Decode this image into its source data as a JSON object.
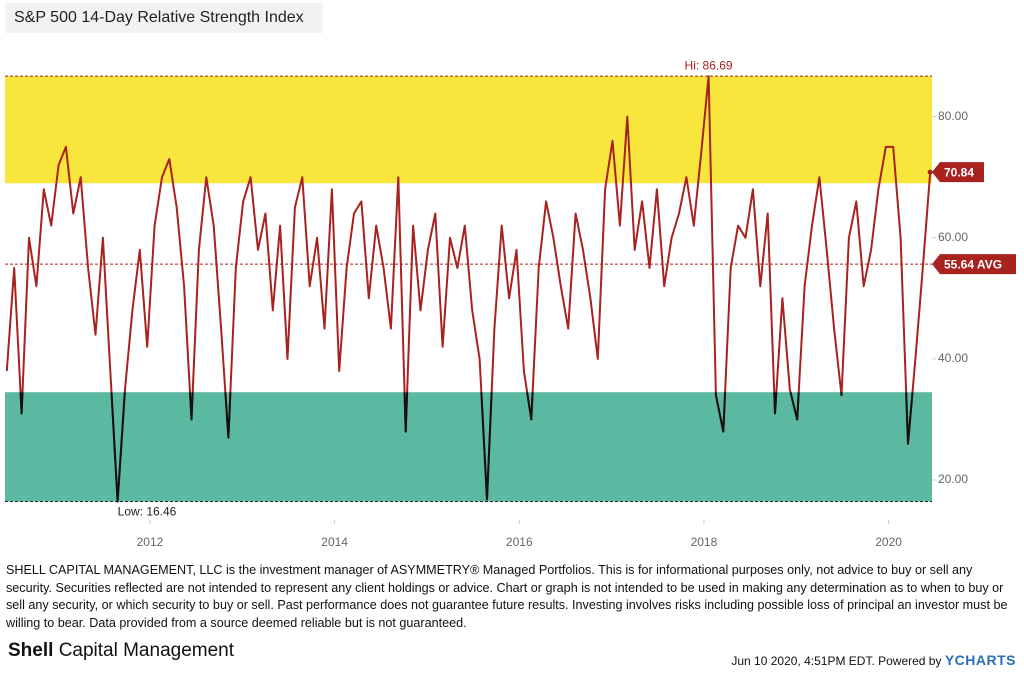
{
  "chart_data": {
    "type": "line",
    "title": "S&P 500 14-Day Relative Strength Index",
    "x": [
      2010.45,
      2010.53,
      2010.61,
      2010.69,
      2010.77,
      2010.85,
      2010.93,
      2011.01,
      2011.09,
      2011.17,
      2011.25,
      2011.33,
      2011.41,
      2011.49,
      2011.57,
      2011.65,
      2011.73,
      2011.81,
      2011.89,
      2011.97,
      2012.05,
      2012.13,
      2012.21,
      2012.29,
      2012.37,
      2012.45,
      2012.53,
      2012.61,
      2012.69,
      2012.77,
      2012.85,
      2012.93,
      2013.01,
      2013.09,
      2013.17,
      2013.25,
      2013.33,
      2013.41,
      2013.49,
      2013.57,
      2013.65,
      2013.73,
      2013.81,
      2013.89,
      2013.97,
      2014.05,
      2014.13,
      2014.21,
      2014.29,
      2014.37,
      2014.45,
      2014.53,
      2014.61,
      2014.69,
      2014.77,
      2014.85,
      2014.93,
      2015.01,
      2015.09,
      2015.17,
      2015.25,
      2015.33,
      2015.41,
      2015.49,
      2015.57,
      2015.65,
      2015.73,
      2015.81,
      2015.89,
      2015.97,
      2016.05,
      2016.13,
      2016.21,
      2016.29,
      2016.37,
      2016.45,
      2016.53,
      2016.61,
      2016.69,
      2016.77,
      2016.85,
      2016.93,
      2017.01,
      2017.09,
      2017.17,
      2017.25,
      2017.33,
      2017.41,
      2017.49,
      2017.57,
      2017.65,
      2017.73,
      2017.81,
      2017.89,
      2017.97,
      2018.05,
      2018.13,
      2018.21,
      2018.29,
      2018.37,
      2018.45,
      2018.53,
      2018.61,
      2018.69,
      2018.77,
      2018.85,
      2018.93,
      2019.01,
      2019.09,
      2019.17,
      2019.25,
      2019.33,
      2019.41,
      2019.49,
      2019.57,
      2019.65,
      2019.73,
      2019.81,
      2019.89,
      2019.97,
      2020.05,
      2020.13,
      2020.21,
      2020.29,
      2020.37,
      2020.45
    ],
    "series": [
      {
        "name": "S&P 500 14-Day Relative Strength Index",
        "color": "#a8231f",
        "low_color": "#111111",
        "values": [
          38,
          55,
          31,
          60,
          52,
          68,
          62,
          72,
          75,
          64,
          70,
          55,
          44,
          60,
          38,
          16.46,
          35,
          48,
          58,
          42,
          62,
          70,
          73,
          65,
          52,
          30,
          58,
          70,
          62,
          45,
          27,
          55,
          66,
          70,
          58,
          64,
          48,
          62,
          40,
          65,
          70,
          52,
          60,
          45,
          68,
          38,
          55,
          64,
          66,
          50,
          62,
          55,
          45,
          70,
          28,
          62,
          48,
          58,
          64,
          42,
          60,
          55,
          62,
          48,
          40,
          16.8,
          45,
          62,
          50,
          58,
          38,
          30,
          55,
          66,
          60,
          52,
          45,
          64,
          58,
          50,
          40,
          68,
          76,
          62,
          80,
          58,
          66,
          55,
          68,
          52,
          60,
          64,
          70,
          62,
          74,
          86.69,
          34,
          28,
          55,
          62,
          60,
          68,
          52,
          64,
          31,
          50,
          35,
          30,
          52,
          62,
          70,
          58,
          45,
          34,
          60,
          66,
          52,
          58,
          68,
          75,
          75,
          60,
          26,
          40,
          55,
          70.84
        ]
      }
    ],
    "xlim": [
      2010.43,
      2020.47
    ],
    "ylim": [
      13.4,
      91
    ],
    "xticks": [
      2012,
      2014,
      2016,
      2018,
      2020
    ],
    "yticks": [
      {
        "value": 20,
        "label": "20.00"
      },
      {
        "value": 40,
        "label": "40.00"
      },
      {
        "value": 60,
        "label": "60.00"
      },
      {
        "value": 80,
        "label": "80.00"
      }
    ],
    "overbought_zone": {
      "from": 69,
      "to": 86.69,
      "color": "#f8e63c"
    },
    "oversold_zone": {
      "from": 16.46,
      "to": 34.5,
      "color": "#5bb9a2"
    },
    "high": {
      "value": 86.69,
      "label": "Hi: 86.69"
    },
    "low": {
      "value": 16.46,
      "label": "Low: 16.46"
    },
    "average": {
      "value": 55.64,
      "label": "55.64 AVG"
    },
    "last_value_label": "70.84",
    "grid": false
  },
  "footer": {
    "disclaimer": "SHELL CAPITAL MANAGEMENT, LLC is the investment manager of ASYMMETRY® Managed Portfolios. This is for informational purposes only, not advice to buy or sell any security. Securities reflected are not intended to represent any client holdings or advice. Chart or graph is not intended to be used in making any determination as to when to buy or sell any security, or which security to buy or sell. Past performance does not guarantee future results. Investing involves risks including possible loss of principal an investor must be willing to bear. Data provided from a source deemed reliable but is not guaranteed.",
    "brand_bold": "Shell",
    "brand_rest": "Capital Management",
    "timestamp": "Jun 10 2020, 4:51PM EDT. Powered by",
    "provider": "YCHARTS"
  }
}
